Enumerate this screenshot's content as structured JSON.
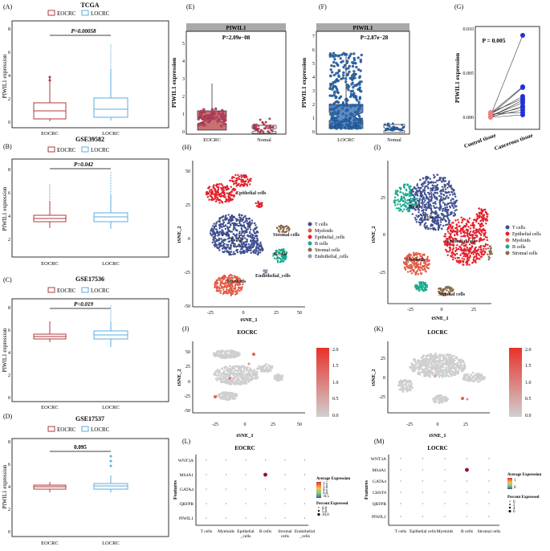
{
  "panels": {
    "A": {
      "letter": "(A)",
      "title": "TCGA",
      "p": "P=0.00058",
      "ylabel": "PIWIL1 expression",
      "yticks": [
        "0",
        "2",
        "4",
        "6",
        "8"
      ],
      "xcats": [
        "EOCRC",
        "LOCRC"
      ]
    },
    "B": {
      "letter": "(B)",
      "title": "GSE39582",
      "p": "P=0.042",
      "ylabel": "PIWIL1 expression",
      "yticks": [
        "2",
        "4",
        "6",
        "8"
      ],
      "xcats": [
        "EOCRC",
        "LOCRC"
      ]
    },
    "C": {
      "letter": "(C)",
      "title": "GSE17536",
      "p": "P=0.019",
      "ylabel": "PIWIL1 expression",
      "yticks": [
        "0",
        "2",
        "4",
        "6",
        "8"
      ],
      "xcats": [
        "EOCRC",
        "LOCRC"
      ]
    },
    "D": {
      "letter": "(D)",
      "title": "GSE17537",
      "p": "0.095",
      "ylabel": "PIWIL1 expression",
      "yticks": [
        "0",
        "2",
        "4",
        "6",
        "8"
      ],
      "xcats": [
        "EOCRC",
        "LOCRC"
      ]
    },
    "E": {
      "letter": "(E)",
      "strip": "PIWIL1",
      "p": "P=2.09e−08",
      "ylabel": "PIWIL1 expression",
      "yticks": [
        "0",
        "1",
        "2",
        "3",
        "4",
        "5"
      ],
      "xcats": [
        "EOCRC",
        "Nomal"
      ]
    },
    "F": {
      "letter": "(F)",
      "strip": "PIWIL1",
      "p": "P=2.87e−28",
      "ylabel": "PIWIL1 expression",
      "yticks": [
        "0",
        "1",
        "2",
        "3",
        "4",
        "5",
        "6",
        "7"
      ],
      "xcats": [
        "LOCRC",
        "Nomal"
      ]
    },
    "G": {
      "letter": "(G)",
      "p": "P = 0.005",
      "ylabel": "PIWIL1 expression",
      "yticks": [
        "0.000",
        "0.005",
        "0.010"
      ],
      "xcats": [
        "Control tissue",
        "Cancerous tissue"
      ]
    },
    "H": {
      "letter": "(H)",
      "xlabel": "tSNE_1",
      "ylabel": "tSNE_2",
      "xticks": [
        "-25",
        "0",
        "25",
        "50"
      ],
      "yticks": [
        "50",
        "25",
        "0",
        "-25",
        "-50"
      ]
    },
    "I": {
      "letter": "(I)",
      "xlabel": "tSNE_1",
      "ylabel": "tSNE_2",
      "xticks": [
        "-25",
        "0",
        "25"
      ],
      "yticks": [
        "25",
        "0",
        "-25"
      ]
    },
    "J": {
      "letter": "(J)",
      "title": "EOCRC",
      "xlabel": "tSNE_1",
      "ylabel": "tSNE_2",
      "xticks": [
        "-25",
        "0",
        "25",
        "50"
      ],
      "yticks": [
        "50",
        "25",
        "0",
        "-25",
        "-50"
      ],
      "scale": [
        "2.0",
        "1.5",
        "1.0",
        "0.5",
        "0.0"
      ]
    },
    "K": {
      "letter": "(K)",
      "title": "LOCRC",
      "xlabel": "tSNE_1",
      "ylabel": "tSNE_2",
      "xticks": [
        "-25",
        "0",
        "25"
      ],
      "yticks": [
        "25",
        "0",
        "-25"
      ],
      "scale": [
        "2.0",
        "1.5",
        "1.0",
        "0.5",
        "0.0"
      ]
    },
    "L": {
      "letter": "(L)",
      "title": "EOCRC",
      "ylabel": "Features",
      "features": [
        "WNT3A",
        "MS4A1",
        "GATA4",
        "QRFPR",
        "PIWIL1"
      ],
      "xcats": [
        "T cells",
        "Myeloids",
        "Epithelial\n_cells",
        "B cells",
        "Stromal\ncells",
        "Endothelial\n_cells"
      ],
      "avg_title": "Average Expression",
      "avg_ticks": [
        "1.5",
        "1.0",
        "0.5",
        "0.0",
        "-0.5"
      ],
      "pct_title": "Percent Expressed",
      "pct_ticks": [
        "0.0",
        "5.0",
        "10.0"
      ]
    },
    "M": {
      "letter": "(M)",
      "title": "LOCRC",
      "ylabel": "Features",
      "features": [
        "WNT3A",
        "MS4A1",
        "GATA4",
        "CHST8",
        "QRFPR",
        "PIWIL1"
      ],
      "xcats": [
        "T cells",
        "Epithelial cells",
        "Myeloids",
        "B cells",
        "Stromal cells"
      ],
      "avg_title": "Average Expression",
      "avg_ticks": [
        "1",
        "0"
      ],
      "pct_title": "Percent Expressed",
      "pct_ticks": [
        "0",
        "2",
        "4",
        "6"
      ]
    }
  },
  "legend_boxes": {
    "eocrc": "EOCRC",
    "locrc": "LOCRC"
  },
  "tsne_legend_H": [
    "T cells",
    "Myeloids",
    "Epithelial_cells",
    "B cells",
    "Stromal cells",
    "Endothelial_cells"
  ],
  "tsne_legend_I": [
    "T cells",
    "Epithelial cells",
    "Myeloids",
    "B cells",
    "Stromal cells"
  ],
  "cluster_labels_H": {
    "epi": "Epithelial cells",
    "t": "T cells",
    "stromal": "Stromal cells",
    "b": "B cells",
    "myeloid": "Myeloids",
    "endo": "Endothelial_cells"
  },
  "cluster_labels_I": {
    "b": "B cells",
    "t": "T cells",
    "epi": "Epithelial cells",
    "myeloid": "Myeloids",
    "stromal": "Stromal cells"
  },
  "colors": {
    "eocrc": "#b03a3a",
    "locrc": "#5aaee0",
    "tcell": "#3f4f8f",
    "myeloid": "#e35b45",
    "epithelial": "#e3202c",
    "bcell": "#19a98e",
    "stromal": "#8a6a4a",
    "endothelial": "#8d9bb5",
    "dot_b": "#9b0a2f"
  }
}
